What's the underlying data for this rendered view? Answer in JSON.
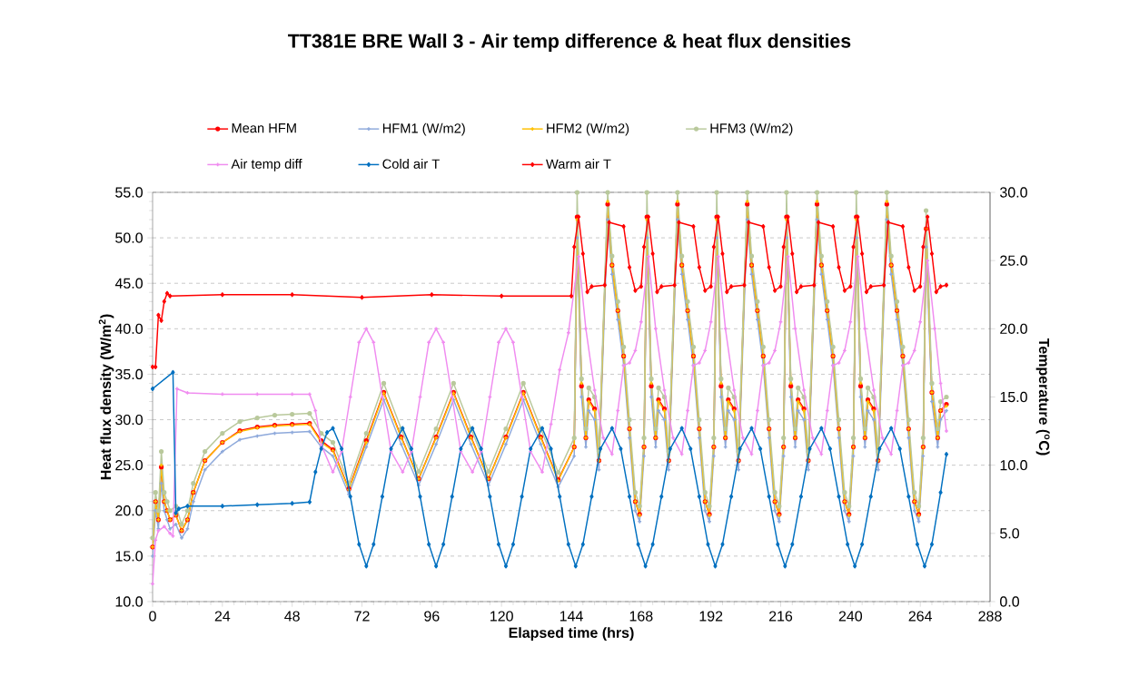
{
  "chart_data": {
    "type": "line",
    "title": "TT381E  BRE Wall 3 - Air temp difference & heat flux densities",
    "xlabel": "Elapsed time (hrs)",
    "ylabel": "Heat flux density (W/m$^{2}$)",
    "y2label": "Temperature ($^{o}$C)",
    "xlim": [
      0,
      288
    ],
    "xticks": [
      0,
      24,
      48,
      72,
      96,
      120,
      144,
      168,
      192,
      216,
      240,
      264,
      288
    ],
    "ylim": [
      10,
      55
    ],
    "yticks": [
      {
        "value": 10,
        "label": "10.0"
      },
      {
        "value": 15,
        "label": "15.0"
      },
      {
        "value": 20,
        "label": "20.0"
      },
      {
        "value": 25,
        "label": "25.0"
      },
      {
        "value": 30,
        "label": "30.0"
      },
      {
        "value": 35,
        "label": "35.0"
      },
      {
        "value": 40,
        "label": "40.0"
      },
      {
        "value": 45,
        "label": "45.0"
      },
      {
        "value": 50,
        "label": "50.0"
      },
      {
        "value": 55,
        "label": "55.0"
      }
    ],
    "y2lim": [
      0,
      30
    ],
    "y2ticks": [
      {
        "value": 0,
        "label": "0.0"
      },
      {
        "value": 5,
        "label": "5.0"
      },
      {
        "value": 10,
        "label": "10.0"
      },
      {
        "value": 15,
        "label": "15.0"
      },
      {
        "value": 20,
        "label": "20.0"
      },
      {
        "value": 25,
        "label": "25.0"
      },
      {
        "value": 30,
        "label": "30.0"
      }
    ],
    "grid": "y",
    "legend": "top",
    "x": [
      0,
      1,
      2,
      3,
      4,
      5,
      6,
      8,
      10,
      12,
      14,
      18,
      24,
      30,
      36,
      42,
      48,
      54,
      58,
      62,
      67.5,
      73.5,
      79.5,
      85.5,
      91.5,
      97.5,
      103.5,
      109.5,
      115.5,
      121.5,
      127.5,
      133.5,
      139.5,
      145,
      146,
      147.5,
      149,
      150,
      152,
      153.5,
      156.5,
      158,
      160,
      162,
      164,
      166,
      167.5,
      169,
      170,
      171.5,
      173,
      174,
      176,
      177.5,
      180.5,
      182,
      184,
      186,
      188,
      190,
      191.5,
      193,
      194,
      195.5,
      197,
      198,
      200,
      201.5,
      204.5,
      206,
      208,
      210,
      212,
      214,
      215.5,
      217,
      218,
      219.5,
      221,
      222,
      224,
      225.5,
      228.5,
      230,
      232,
      234,
      236,
      238,
      239.5,
      241,
      242,
      243.5,
      245,
      246,
      248,
      249.5,
      252.5,
      254,
      256,
      258,
      260,
      262,
      263.5,
      265,
      266,
      268,
      270,
      271,
      273
    ],
    "series": [
      {
        "name": "Mean HFM",
        "color": "#ff0000",
        "marker": "circle",
        "values": [
          16,
          21,
          19,
          24.8,
          21,
          20,
          19,
          19.5,
          17.8,
          19,
          22,
          25.5,
          27.5,
          28.8,
          29.2,
          29.4,
          29.5,
          29.6,
          27.7,
          26.7,
          22.4,
          27.7,
          33,
          28.1,
          23.5,
          28.1,
          33,
          28.1,
          23.5,
          28.1,
          33,
          28.1,
          23.4,
          27,
          52.3,
          33.7,
          28,
          32.2,
          31.2,
          25.5,
          53.7,
          47,
          42,
          37,
          29,
          21,
          19.6,
          27,
          52.3,
          33.7,
          28,
          32.2,
          31.2,
          25.5,
          53.7,
          47,
          42,
          37,
          29,
          21,
          19.6,
          27,
          52.3,
          33.7,
          28,
          32.2,
          31.2,
          25.5,
          53.7,
          47,
          42,
          37,
          29,
          21,
          19.6,
          27,
          52.3,
          33.7,
          28,
          32.2,
          31.2,
          25.5,
          53.7,
          47,
          42,
          37,
          29,
          21,
          19.6,
          27,
          52.3,
          33.7,
          28,
          32.2,
          31.2,
          25.5,
          53.7,
          47,
          42,
          37,
          29,
          21,
          19.6,
          27,
          51,
          33,
          28,
          31,
          31.7
        ]
      },
      {
        "name": "HFM1 (W/m2)",
        "color": "#8ea9db",
        "marker": "cross",
        "values": [
          15,
          20,
          18,
          23,
          20,
          19,
          18,
          18.5,
          17,
          18,
          21,
          24.5,
          26.5,
          27.8,
          28.2,
          28.5,
          28.6,
          28.7,
          27,
          26,
          21.8,
          27,
          32.2,
          27.3,
          22.8,
          27.3,
          32.2,
          27.3,
          22.8,
          27.3,
          32.2,
          27.3,
          22.6,
          26,
          50,
          32.5,
          27,
          31,
          30,
          24.5,
          52,
          46,
          41,
          36,
          28,
          20,
          18.8,
          26,
          50,
          32.5,
          27,
          31,
          30,
          24.5,
          52,
          46,
          41,
          36,
          28,
          20,
          18.8,
          26,
          50,
          32.5,
          27,
          31,
          30,
          24.5,
          52,
          46,
          41,
          36,
          28,
          20,
          18.8,
          26,
          50,
          32.5,
          27,
          31,
          30,
          24.5,
          52,
          46,
          41,
          36,
          28,
          20,
          18.8,
          26,
          50,
          32.5,
          27,
          31,
          30,
          24.5,
          52,
          46,
          41,
          36,
          28,
          20,
          18.8,
          26,
          49,
          32,
          27,
          30,
          31
        ]
      },
      {
        "name": "HFM2 (W/m2)",
        "color": "#ffc000",
        "marker": "cross",
        "values": [
          16,
          21,
          19,
          25,
          21,
          20,
          19,
          19.5,
          17.8,
          19,
          22,
          25.5,
          27.5,
          28.7,
          29.1,
          29.3,
          29.4,
          29.5,
          27.5,
          26.6,
          22.3,
          27.5,
          32.9,
          28,
          23.5,
          28,
          32.9,
          28,
          23.5,
          28,
          32.9,
          28,
          23.3,
          27,
          52,
          34,
          28,
          32,
          31,
          25.5,
          54,
          47,
          42,
          37,
          29,
          21,
          19.5,
          27,
          52,
          34,
          28,
          32,
          31,
          25.5,
          54,
          47,
          42,
          37,
          29,
          21,
          19.5,
          27,
          52,
          34,
          28,
          32,
          31,
          25.5,
          54,
          47,
          42,
          37,
          29,
          21,
          19.5,
          27,
          52,
          34,
          28,
          32,
          31,
          25.5,
          54,
          47,
          42,
          37,
          29,
          21,
          19.5,
          27,
          52,
          34,
          28,
          32,
          31,
          25.5,
          54,
          47,
          42,
          37,
          29,
          21,
          19.5,
          27,
          51,
          33,
          28,
          31,
          31.5
        ]
      },
      {
        "name": "HFM3 (W/m2)",
        "color": "#b9c99c",
        "marker": "circle",
        "values": [
          17,
          22,
          20,
          26.5,
          22,
          21,
          20,
          20.5,
          18.5,
          20,
          23,
          26.5,
          28.5,
          29.8,
          30.2,
          30.5,
          30.6,
          30.7,
          28.5,
          27.5,
          23,
          28.5,
          34,
          29,
          24.3,
          29,
          34,
          29,
          24.3,
          29,
          34,
          29,
          24.2,
          28,
          55,
          34.5,
          29,
          33.5,
          32.5,
          26.5,
          55,
          48,
          43,
          38,
          30,
          22,
          20.5,
          28,
          55,
          34.5,
          29,
          33.5,
          32.5,
          26.5,
          55,
          48,
          43,
          38,
          30,
          22,
          20.5,
          28,
          55,
          34.5,
          29,
          33.5,
          32.5,
          26.5,
          55,
          48,
          43,
          38,
          30,
          22,
          20.5,
          28,
          55,
          34.5,
          29,
          33.5,
          32.5,
          26.5,
          55,
          48,
          43,
          38,
          30,
          22,
          20.5,
          28,
          55,
          34.5,
          29,
          33.5,
          32.5,
          26.5,
          55,
          48,
          43,
          38,
          30,
          22,
          20.5,
          28,
          53,
          34,
          29,
          32,
          32.5
        ]
      },
      {
        "name": "Air temp diff",
        "color": "#f08cf0",
        "marker": "cross",
        "axis": "y2",
        "x": [
          0,
          1,
          2,
          4,
          6,
          7,
          8.4,
          12,
          24,
          36,
          48,
          54,
          56,
          58,
          62,
          65,
          68,
          71,
          73.5,
          76,
          79,
          82,
          86,
          89,
          92,
          95,
          97.5,
          100,
          103,
          106,
          110,
          113,
          116,
          119,
          121.5,
          124,
          127,
          130,
          134,
          137,
          140,
          143,
          146.5,
          149,
          152,
          155,
          158,
          160,
          162,
          164,
          166,
          168,
          170.5,
          173,
          176,
          179,
          182,
          184,
          186,
          188,
          190,
          192,
          194.5,
          197,
          200,
          203,
          206,
          208,
          210,
          212,
          214,
          216,
          218.5,
          221,
          224,
          227,
          230,
          232,
          234,
          236,
          238,
          240,
          242.5,
          245,
          248,
          251,
          254,
          256,
          258,
          260,
          262,
          264,
          266.5,
          269,
          271,
          273
        ],
        "values": [
          1.3,
          4.5,
          5.2,
          5.5,
          5.0,
          4.8,
          15.6,
          15.3,
          15.2,
          15.2,
          15.2,
          15.2,
          14,
          11.5,
          9.5,
          11,
          15,
          19,
          20,
          19,
          15,
          11,
          9.5,
          11,
          15,
          19,
          20,
          19,
          15,
          11,
          9.5,
          11,
          15,
          19,
          20,
          19,
          15,
          11,
          9.5,
          13,
          17,
          19.7,
          25.3,
          20,
          15.5,
          12,
          10.8,
          14,
          17.3,
          17.5,
          18.4,
          20.5,
          25.3,
          20,
          15.5,
          12,
          10.8,
          14,
          17.3,
          17.5,
          18.4,
          20.5,
          25.3,
          20,
          15.5,
          12,
          10.8,
          14,
          17.3,
          17.5,
          18.4,
          20.5,
          25.3,
          20,
          15.5,
          12,
          10.8,
          14,
          17.3,
          17.5,
          18.4,
          20.5,
          25.3,
          20,
          15.5,
          12,
          10.8,
          14,
          17.3,
          17.5,
          18.4,
          20.5,
          25,
          20,
          16,
          12.5
        ]
      },
      {
        "name": "Cold air T",
        "color": "#0070c0",
        "marker": "diamond",
        "axis": "y2",
        "x": [
          0,
          7,
          8,
          9,
          12,
          24,
          36,
          48,
          54,
          56,
          58,
          60,
          62,
          65,
          68,
          71,
          73.5,
          76,
          79,
          82,
          86,
          89,
          92,
          95,
          97.5,
          100,
          103,
          106,
          110,
          113,
          116,
          119,
          121.5,
          124,
          127,
          130,
          134,
          137,
          140,
          143,
          145.5,
          148,
          151,
          154,
          158,
          161,
          164,
          167,
          169.5,
          172,
          175,
          178,
          182,
          185,
          188,
          191,
          193.5,
          196,
          199,
          202,
          206,
          209,
          212,
          215,
          217.5,
          220,
          223,
          226,
          230,
          233,
          236,
          239,
          241.5,
          244,
          247,
          250,
          254,
          257,
          260,
          263,
          265.5,
          268,
          271,
          273
        ],
        "values": [
          15.6,
          16.8,
          6.5,
          6.8,
          7.0,
          7.0,
          7.1,
          7.2,
          7.3,
          9.5,
          11.2,
          12.4,
          12.7,
          11.2,
          7.7,
          4.2,
          2.6,
          4.2,
          7.7,
          11.2,
          12.7,
          11.2,
          7.7,
          4.2,
          2.6,
          4.2,
          7.7,
          11.2,
          12.7,
          11.2,
          7.7,
          4.2,
          2.6,
          4.2,
          7.7,
          11.2,
          12.7,
          11.2,
          7.7,
          4.2,
          2.6,
          4.2,
          7.7,
          11.2,
          12.7,
          11.2,
          7.7,
          4.2,
          2.6,
          4.2,
          7.7,
          11.2,
          12.7,
          11.2,
          7.7,
          4.2,
          2.6,
          4.2,
          7.7,
          11.2,
          12.7,
          11.2,
          7.7,
          4.2,
          2.6,
          4.2,
          7.7,
          11.2,
          12.7,
          11.2,
          7.7,
          4.2,
          2.6,
          4.2,
          7.7,
          11.2,
          12.7,
          11.2,
          7.7,
          4.2,
          2.6,
          4.2,
          8.0,
          10.8
        ]
      },
      {
        "name": "Warm air T",
        "color": "#ff0000",
        "marker": "diamond",
        "axis": "y2",
        "x": [
          0,
          1,
          2,
          3,
          4,
          5,
          6,
          24,
          48,
          72,
          96,
          120,
          144,
          145,
          146.5,
          148,
          149.5,
          151,
          155.5,
          157,
          162,
          164,
          166,
          168,
          169,
          170.5,
          172,
          173.5,
          175,
          179.5,
          181,
          186,
          188,
          190,
          192,
          193,
          194.5,
          196,
          197.5,
          199,
          203.5,
          205,
          210,
          212,
          214,
          216,
          217,
          218.5,
          220,
          221.5,
          223,
          227.5,
          229,
          234,
          236,
          238,
          240,
          241,
          242.5,
          244,
          245.5,
          247,
          251.5,
          253,
          258,
          260,
          262,
          264,
          265,
          266.5,
          268,
          269.5,
          271,
          273
        ],
        "values": [
          17.2,
          17.2,
          21.0,
          20.6,
          22.0,
          22.6,
          22.4,
          22.5,
          22.5,
          22.3,
          22.5,
          22.4,
          22.4,
          26,
          28.2,
          25.5,
          22.7,
          23.1,
          23.2,
          27.8,
          27.5,
          24.5,
          22.8,
          23.1,
          26,
          28.2,
          25.5,
          22.7,
          23.1,
          23.2,
          27.8,
          27.5,
          24.5,
          22.8,
          23.1,
          26,
          28.2,
          25.5,
          22.7,
          23.1,
          23.2,
          27.8,
          27.5,
          24.5,
          22.8,
          23.1,
          26,
          28.2,
          25.5,
          22.7,
          23.1,
          23.2,
          27.8,
          27.5,
          24.5,
          22.8,
          23.1,
          26,
          28.2,
          25.5,
          22.7,
          23.1,
          23.2,
          27.8,
          27.5,
          24.5,
          22.8,
          23.1,
          26,
          28.2,
          25.5,
          22.7,
          23.1,
          23.2
        ]
      }
    ]
  }
}
